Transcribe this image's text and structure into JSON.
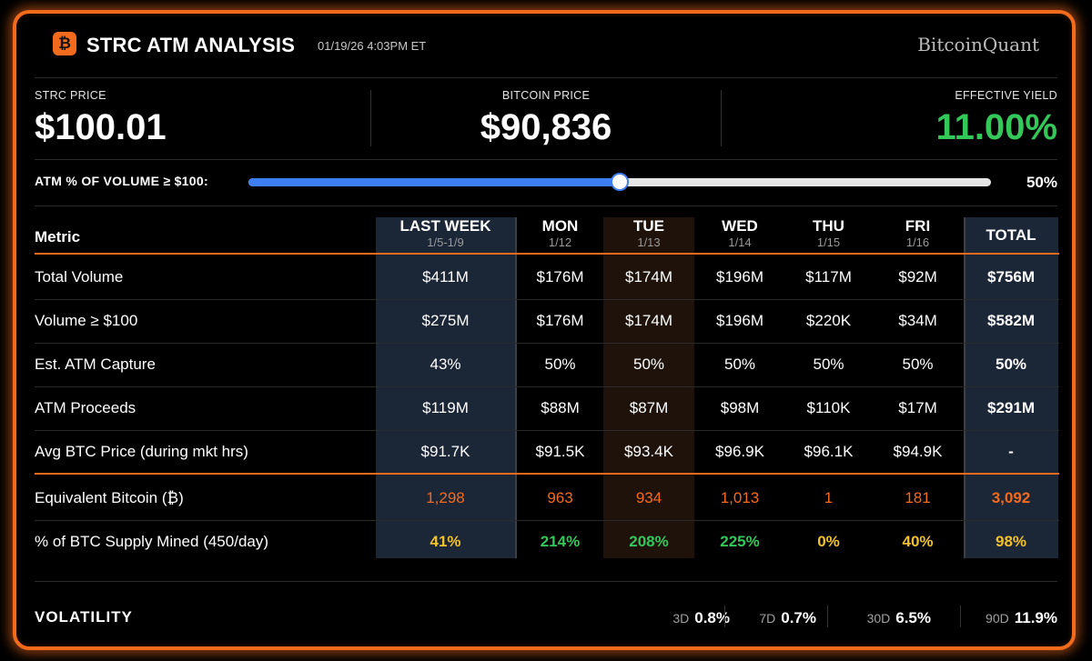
{
  "header": {
    "logo_glyph": "₿",
    "title": "STRC ATM ANALYSIS",
    "timestamp": "01/19/26 4:03PM ET",
    "brand": "BitcoinQuant"
  },
  "stats": {
    "strc_price_label": "STRC PRICE",
    "strc_price": "$100.01",
    "bitcoin_price_label": "BITCOIN PRICE",
    "bitcoin_price": "$90,836",
    "effective_yield_label": "EFFECTIVE YIELD",
    "effective_yield": "11.00%"
  },
  "slider": {
    "label": "ATM % OF VOLUME ≥ $100:",
    "value_label": "50%",
    "value": 50
  },
  "table": {
    "metric_header": "Metric",
    "columns": [
      {
        "title": "LAST WEEK",
        "sub": "1/5-1/9"
      },
      {
        "title": "MON",
        "sub": "1/12"
      },
      {
        "title": "TUE",
        "sub": "1/13"
      },
      {
        "title": "WED",
        "sub": "1/14"
      },
      {
        "title": "THU",
        "sub": "1/15"
      },
      {
        "title": "FRI",
        "sub": "1/16"
      },
      {
        "title": "TOTAL",
        "sub": ""
      }
    ],
    "rows": [
      {
        "label": "Total Volume",
        "values": [
          "$411M",
          "$176M",
          "$174M",
          "$196M",
          "$117M",
          "$92M",
          "$756M"
        ]
      },
      {
        "label": "Volume ≥ $100",
        "values": [
          "$275M",
          "$176M",
          "$174M",
          "$196M",
          "$220K",
          "$34M",
          "$582M"
        ]
      },
      {
        "label": "Est. ATM Capture",
        "values": [
          "43%",
          "50%",
          "50%",
          "50%",
          "50%",
          "50%",
          "50%"
        ]
      },
      {
        "label": "ATM Proceeds",
        "values": [
          "$119M",
          "$88M",
          "$87M",
          "$98M",
          "$110K",
          "$17M",
          "$291M"
        ]
      },
      {
        "label": "Avg BTC Price (during mkt hrs)",
        "values": [
          "$91.7K",
          "$91.5K",
          "$93.4K",
          "$96.9K",
          "$96.1K",
          "$94.9K",
          "-"
        ]
      },
      {
        "label": "Equivalent Bitcoin (₿)",
        "values": [
          "1,298",
          "963",
          "934",
          "1,013",
          "1",
          "181",
          "3,092"
        ]
      },
      {
        "label": "% of BTC Supply Mined (450/day)",
        "values": [
          "41%",
          "214%",
          "208%",
          "225%",
          "0%",
          "40%",
          "98%"
        ]
      }
    ]
  },
  "colors": {
    "accent": "#f26b1d",
    "green": "#34c759",
    "yellow": "#f2c12e",
    "blue": "#3d7ef0"
  },
  "volatility": {
    "label": "VOLATILITY",
    "items": [
      {
        "period": "3D",
        "value": "0.8%"
      },
      {
        "period": "7D",
        "value": "0.7%"
      },
      {
        "period": "30D",
        "value": "6.5%"
      },
      {
        "period": "90D",
        "value": "11.9%"
      }
    ]
  }
}
